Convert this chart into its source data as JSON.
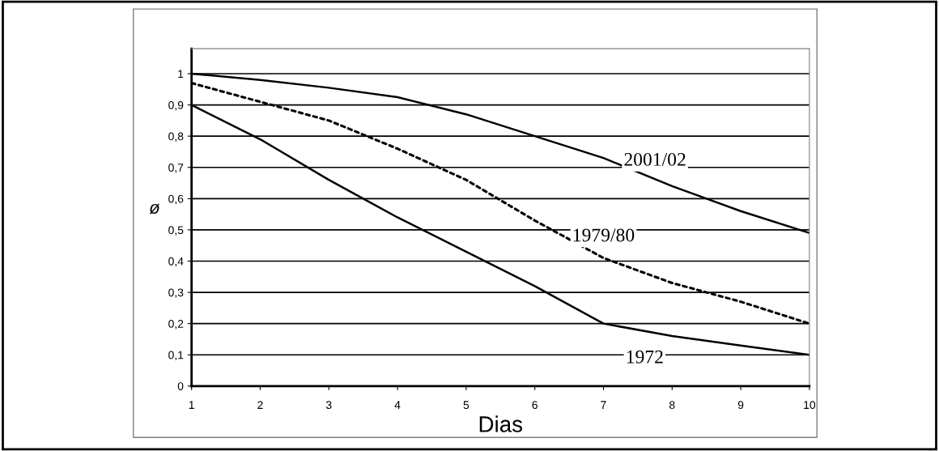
{
  "chart_data": {
    "type": "line",
    "xlabel": "Dias",
    "ylabel": "ø",
    "x": [
      1,
      2,
      3,
      4,
      5,
      6,
      7,
      8,
      9,
      10
    ],
    "series": [
      {
        "name": "2001/02",
        "color": "#000000",
        "line_style": "solid",
        "values": [
          1,
          0.98,
          0.955,
          0.925,
          0.87,
          0.8,
          0.73,
          0.64,
          0.56,
          0.49
        ]
      },
      {
        "name": "1979/80",
        "color": "#000000",
        "line_style": "dotted",
        "values": [
          0.97,
          0.91,
          0.85,
          0.76,
          0.66,
          0.53,
          0.41,
          0.33,
          0.27,
          0.2
        ]
      },
      {
        "name": "1972",
        "color": "#000000",
        "line_style": "solid",
        "values": [
          0.9,
          0.79,
          0.66,
          0.54,
          0.43,
          0.32,
          0.2,
          0.16,
          0.13,
          0.1
        ]
      }
    ],
    "xlim": [
      1,
      10
    ],
    "xticks": [
      1,
      2,
      3,
      4,
      5,
      6,
      7,
      8,
      9,
      10
    ],
    "ylim": [
      0,
      1.08
    ],
    "yticks": [
      0,
      {
        "value": 0.1,
        "label": "0,1"
      },
      {
        "value": 0.2,
        "label": "0,2"
      },
      {
        "value": 0.3,
        "label": "0,3"
      },
      {
        "value": 0.4,
        "label": "0,4"
      },
      {
        "value": 0.5,
        "label": "0,5"
      },
      {
        "value": 0.6,
        "label": "0,6"
      },
      {
        "value": 0.7,
        "label": "0,7"
      },
      {
        "value": 0.8,
        "label": "0,8"
      },
      {
        "value": 0.9,
        "label": "0,9"
      },
      1
    ],
    "grid": "y",
    "legend": false,
    "marker": "none"
  }
}
